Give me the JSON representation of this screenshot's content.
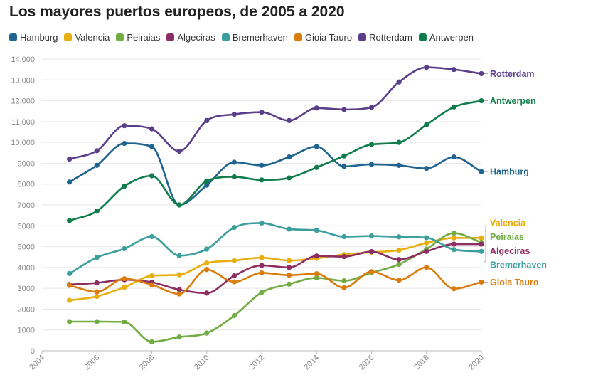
{
  "chart_data": {
    "type": "line",
    "title": "Los mayores puertos europeos, de 2005 a 2020",
    "xlabel": "",
    "ylabel": "",
    "xlim": [
      2004,
      2020
    ],
    "ylim": [
      0,
      14000
    ],
    "x_ticks": [
      "2004",
      "2006",
      "2008",
      "2010",
      "2012",
      "2014",
      "2016",
      "2018",
      "2020"
    ],
    "y_ticks": [
      "0",
      "1000",
      "2000",
      "3000",
      "4000",
      "5000",
      "6000",
      "7000",
      "8000",
      "9000",
      "10,000",
      "11,000",
      "12,000",
      "13,000",
      "14,000"
    ],
    "grid": true,
    "legend_position": "top-left",
    "x": [
      2005,
      2006,
      2007,
      2008,
      2009,
      2010,
      2011,
      2012,
      2013,
      2014,
      2015,
      2016,
      2017,
      2018,
      2019,
      2020
    ],
    "series": [
      {
        "name": "Hamburg",
        "color": "#1f6391",
        "values": [
          8100,
          8900,
          9950,
          9800,
          7000,
          7950,
          9050,
          8900,
          9300,
          9800,
          8850,
          8950,
          8900,
          8750,
          9300,
          8600
        ]
      },
      {
        "name": "Valencia",
        "color": "#e8ae0c",
        "values": [
          2420,
          2610,
          3050,
          3600,
          3650,
          4210,
          4330,
          4470,
          4330,
          4440,
          4620,
          4730,
          4830,
          5180,
          5420,
          5420
        ]
      },
      {
        "name": "Peiraias",
        "color": "#72ad44",
        "values": [
          1400,
          1400,
          1380,
          430,
          660,
          850,
          1690,
          2800,
          3200,
          3500,
          3360,
          3750,
          4150,
          4880,
          5650,
          5200
        ]
      },
      {
        "name": "Algeciras",
        "color": "#8c2e62",
        "values": [
          3180,
          3260,
          3410,
          3290,
          2930,
          2770,
          3600,
          4100,
          4000,
          4550,
          4520,
          4760,
          4380,
          4770,
          5120,
          5120
        ]
      },
      {
        "name": "Bremerhaven",
        "color": "#3d9e9e",
        "values": [
          3710,
          4480,
          4900,
          5480,
          4570,
          4880,
          5920,
          6130,
          5840,
          5780,
          5480,
          5510,
          5470,
          5430,
          4860,
          4770
        ]
      },
      {
        "name": "Gioia Tauro",
        "color": "#d97c0b",
        "values": [
          3140,
          2830,
          3460,
          3170,
          2730,
          3900,
          3310,
          3740,
          3630,
          3700,
          3030,
          3800,
          3390,
          4000,
          2980,
          3300
        ]
      },
      {
        "name": "Rotterdam",
        "color": "#5b3e8a",
        "values": [
          9200,
          9600,
          10800,
          10650,
          9580,
          11050,
          11350,
          11450,
          11050,
          11650,
          11580,
          11680,
          12900,
          13600,
          13500,
          13300
        ]
      },
      {
        "name": "Antwerpen",
        "color": "#0f7d4b",
        "values": [
          6250,
          6700,
          7900,
          8400,
          7000,
          8150,
          8350,
          8200,
          8300,
          8800,
          9350,
          9900,
          10000,
          10850,
          11700,
          12000
        ]
      }
    ],
    "end_labels": [
      {
        "series": "Rotterdam",
        "text": "Rotterdam",
        "label_value": 13300
      },
      {
        "series": "Antwerpen",
        "text": "Antwerpen",
        "label_value": 12000
      },
      {
        "series": "Hamburg",
        "text": "Hamburg",
        "label_value": 8600
      },
      {
        "series": "Valencia",
        "text": "Valencia",
        "label_value": 6150
      },
      {
        "series": "Peiraias",
        "text": "Peiraias",
        "label_value": 5480
      },
      {
        "series": "Algeciras",
        "text": "Algeciras",
        "label_value": 4800
      },
      {
        "series": "Bremerhaven",
        "text": "Bremerhaven",
        "label_value": 4130
      },
      {
        "series": "Gioia Tauro",
        "text": "Gioia Tauro",
        "label_value": 3300
      }
    ]
  }
}
